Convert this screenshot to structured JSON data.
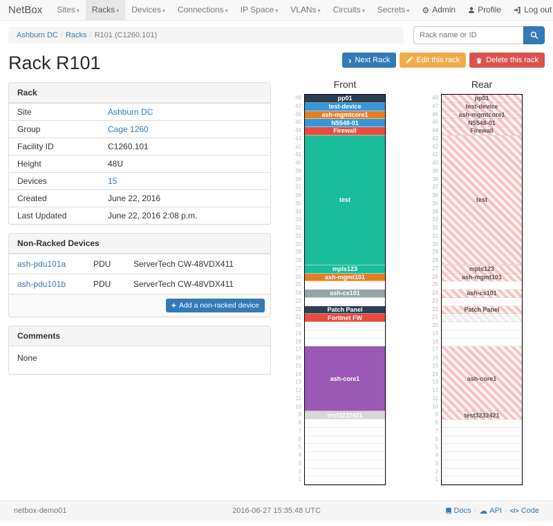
{
  "navbar": {
    "brand": "NetBox",
    "items": [
      {
        "label": "Sites"
      },
      {
        "label": "Racks"
      },
      {
        "label": "Devices"
      },
      {
        "label": "Connections"
      },
      {
        "label": "IP Space"
      },
      {
        "label": "VLANs"
      },
      {
        "label": "Circuits"
      },
      {
        "label": "Secrets"
      }
    ],
    "admin": "Admin",
    "profile": "Profile",
    "logout": "Log out"
  },
  "breadcrumb": {
    "site": "Ashburn DC",
    "section": "Racks",
    "current": "R101 (C1260.101)"
  },
  "search": {
    "placeholder": "Rack name or ID"
  },
  "page": {
    "title": "Rack R101"
  },
  "actions": {
    "next": "Next Rack",
    "edit": "Edit this rack",
    "delete": "Delete this rack"
  },
  "rack_panel": {
    "title": "Rack",
    "rows": [
      {
        "label": "Site",
        "value": "Ashburn DC"
      },
      {
        "label": "Group",
        "value": "Cage 1260"
      },
      {
        "label": "Facility ID",
        "value": "C1260.101"
      },
      {
        "label": "Height",
        "value": "48U"
      },
      {
        "label": "Devices",
        "value": "15"
      },
      {
        "label": "Created",
        "value": "June 22, 2016"
      },
      {
        "label": "Last Updated",
        "value": "June 22, 2016 2:08 p.m."
      }
    ]
  },
  "non_racked": {
    "title": "Non-Racked Devices",
    "rows": [
      {
        "name": "ash-pdu101a",
        "type": "PDU",
        "model": "ServerTech CW-48VDX411"
      },
      {
        "name": "ash-pdu101b",
        "type": "PDU",
        "model": "ServerTech CW-48VDX411"
      }
    ],
    "add_label": "Add a non-racked device"
  },
  "comments": {
    "title": "Comments",
    "body": "None"
  },
  "elevations": {
    "front_title": "Front",
    "rear_title": "Rear",
    "units_total": 48,
    "devices": [
      {
        "u": 48,
        "h": 1,
        "label": "pp01",
        "color": "#2c3e50"
      },
      {
        "u": 47,
        "h": 1,
        "label": "test-device",
        "color": "#3498db"
      },
      {
        "u": 46,
        "h": 1,
        "label": "ash-mgmtcore1",
        "color": "#e67e22"
      },
      {
        "u": 45,
        "h": 1,
        "label": "N5548-01",
        "color": "#3498db"
      },
      {
        "u": 44,
        "h": 1,
        "label": "Firewall",
        "color": "#e74c3c"
      },
      {
        "u": 43,
        "h": 16,
        "label": "test",
        "color": "#1abc9c"
      },
      {
        "u": 27,
        "h": 1,
        "label": "mpls123",
        "color": "#1abc9c"
      },
      {
        "u": 26,
        "h": 1,
        "label": "ash-mgmt101",
        "color": "#e67e22"
      },
      {
        "u": 24,
        "h": 1,
        "label": "ash-cs101",
        "color": "#95a5a6"
      },
      {
        "u": 22,
        "h": 1,
        "label": "Patch Panel",
        "color": "#2c3e50"
      },
      {
        "u": 21,
        "h": 1,
        "label": "Fortinet FW",
        "color": "#e74c3c",
        "rear": "gray"
      },
      {
        "u": 17,
        "h": 8,
        "label": "ash-core1",
        "color": "#9b59b6"
      },
      {
        "u": 9,
        "h": 1,
        "label": "test3232421",
        "color": "#d8d8d8"
      }
    ]
  },
  "footer": {
    "hostname": "netbox-demo01",
    "timestamp": "2016-06-27 15:35:48 UTC",
    "links": [
      {
        "label": "Docs"
      },
      {
        "label": "API"
      },
      {
        "label": "Code"
      }
    ]
  }
}
